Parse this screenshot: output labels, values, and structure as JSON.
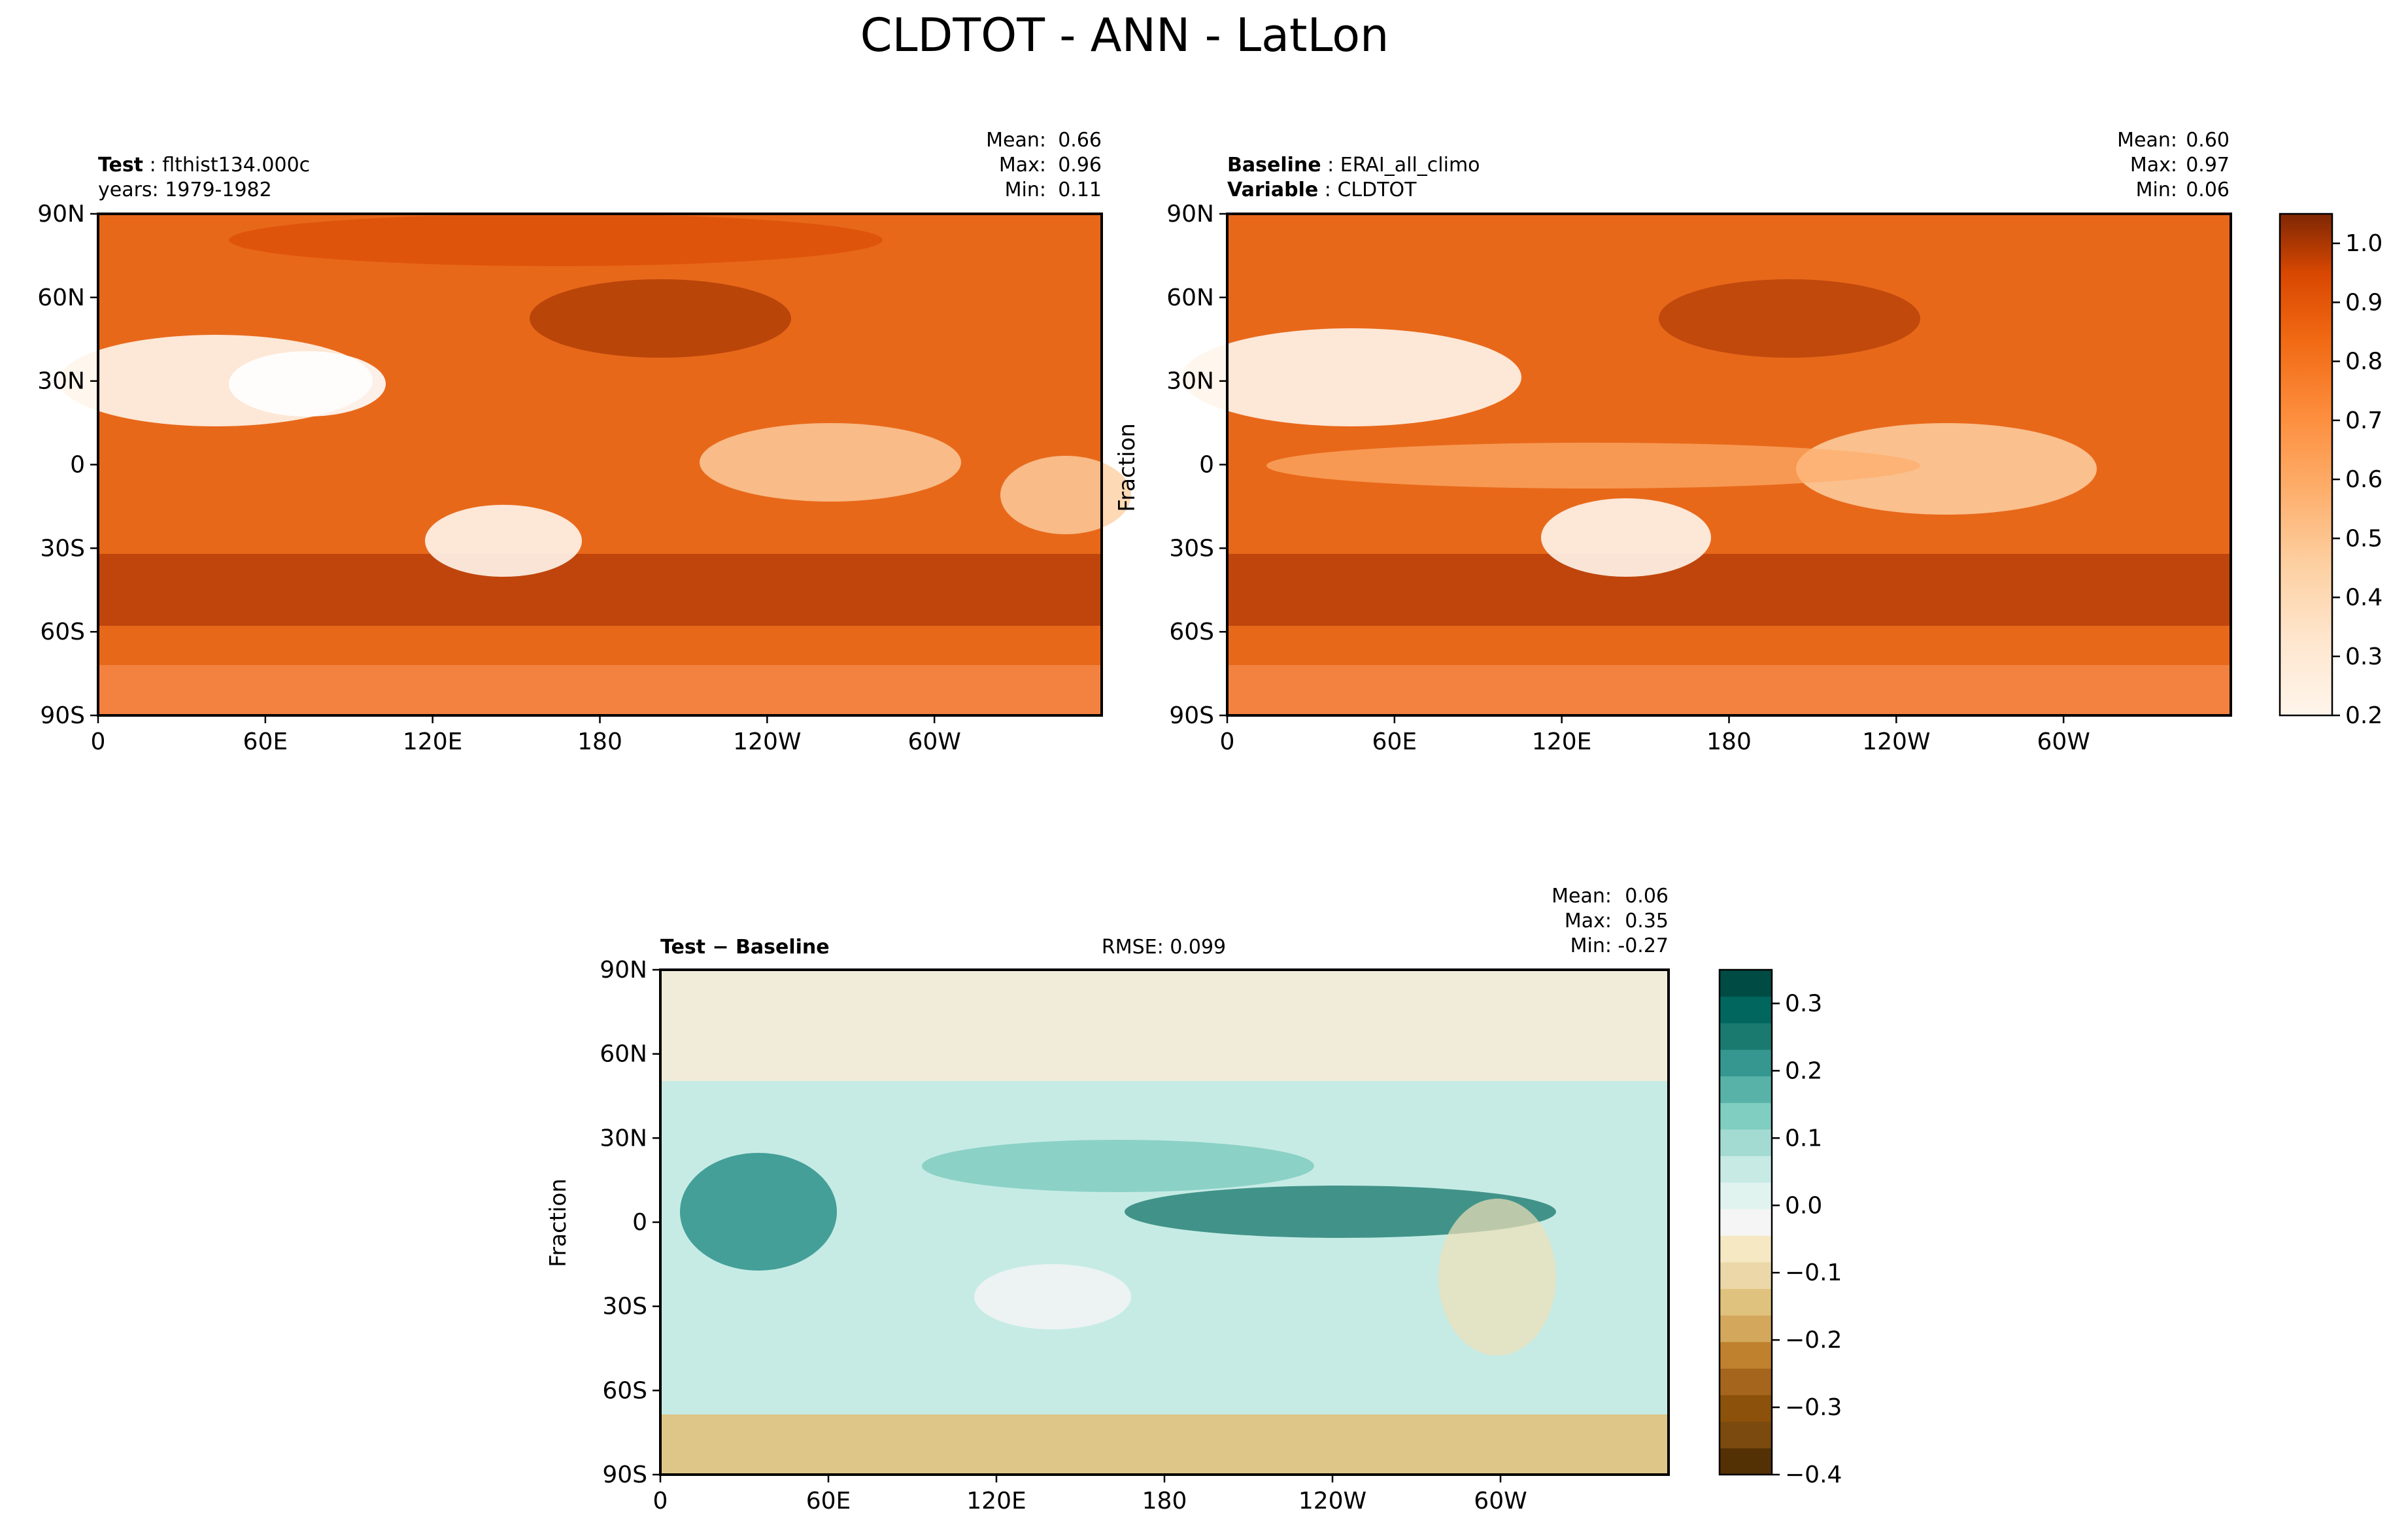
{
  "figure": {
    "title": "CLDTOT - ANN - LatLon"
  },
  "chart_data": [
    {
      "type": "heatmap",
      "panel": "test",
      "header_lines": [
        {
          "bold": "Test",
          "text": "flthist134.000c"
        },
        {
          "bold": "",
          "text": "years: 1979-1982"
        }
      ],
      "stats": [
        {
          "label": "Mean:",
          "value": "0.66"
        },
        {
          "label": "Max:",
          "value": "0.96"
        },
        {
          "label": "Min:",
          "value": "0.11"
        }
      ],
      "ylabel": "",
      "yticks": [
        "90N",
        "60N",
        "30N",
        "0",
        "30S",
        "60S",
        "90S"
      ],
      "xticks": [
        "0",
        "60E",
        "120E",
        "180",
        "120W",
        "60W"
      ],
      "xlim": [
        0,
        360
      ],
      "ylim": [
        -90,
        90
      ],
      "colormap": "Oranges",
      "contour_levels": [
        0.2,
        0.25,
        0.3,
        0.35,
        0.4,
        0.45,
        0.5,
        0.55,
        0.6,
        0.65,
        0.7,
        0.75,
        0.8,
        0.85,
        0.9,
        0.95,
        1.0,
        1.05
      ],
      "value_range": [
        0.11,
        0.96
      ],
      "mean": 0.66
    },
    {
      "type": "heatmap",
      "panel": "baseline",
      "header_lines": [
        {
          "bold": "Baseline",
          "text": "ERAI_all_climo"
        },
        {
          "bold": "Variable",
          "text": "CLDTOT"
        }
      ],
      "stats": [
        {
          "label": "Mean:",
          "value": "0.60"
        },
        {
          "label": "Max:",
          "value": "0.97"
        },
        {
          "label": "Min:",
          "value": "0.06"
        }
      ],
      "ylabel": "Fraction",
      "yticks": [
        "90N",
        "60N",
        "30N",
        "0",
        "30S",
        "60S",
        "90S"
      ],
      "xticks": [
        "0",
        "60E",
        "120E",
        "180",
        "120W",
        "60W"
      ],
      "xlim": [
        0,
        360
      ],
      "ylim": [
        -90,
        90
      ],
      "colormap": "Oranges",
      "value_range": [
        0.06,
        0.97
      ],
      "mean": 0.6,
      "colorbar": {
        "ticks": [
          "1.0",
          "0.9",
          "0.8",
          "0.7",
          "0.6",
          "0.5",
          "0.4",
          "0.3",
          "0.2"
        ],
        "range": [
          0.2,
          1.05
        ]
      }
    },
    {
      "type": "heatmap",
      "panel": "difference",
      "header_left": {
        "bold": "Test − Baseline"
      },
      "rmse": "RMSE: 0.099",
      "stats": [
        {
          "label": "Mean:",
          "value": "0.06"
        },
        {
          "label": "Max:",
          "value": "0.35"
        },
        {
          "label": "Min:",
          "value": "-0.27"
        }
      ],
      "ylabel": "Fraction",
      "yticks": [
        "90N",
        "60N",
        "30N",
        "0",
        "30S",
        "60S",
        "90S"
      ],
      "xticks": [
        "0",
        "60E",
        "120E",
        "180",
        "120W",
        "60W"
      ],
      "xlim": [
        0,
        360
      ],
      "ylim": [
        -90,
        90
      ],
      "colormap": "BrBG",
      "value_range": [
        -0.27,
        0.35
      ],
      "mean": 0.06,
      "colorbar": {
        "ticks": [
          "0.3",
          "0.2",
          "0.1",
          "0.0",
          "−0.1",
          "−0.2",
          "−0.3",
          "−0.4"
        ],
        "range": [
          -0.4,
          0.35
        ]
      }
    }
  ]
}
